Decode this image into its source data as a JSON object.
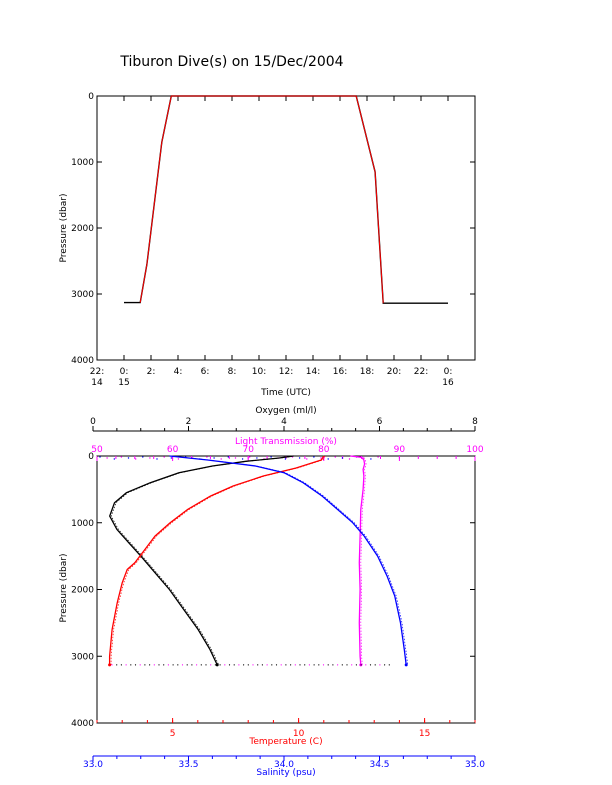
{
  "page": {
    "title": "Tiburon Dive(s) on 15/Dec/2004"
  },
  "colors": {
    "black": "#000000",
    "red": "#ff0000",
    "magenta": "#ff00ff",
    "blue": "#0000ff"
  },
  "chart_data": [
    {
      "type": "line",
      "panel": "pressure-vs-time",
      "xlabel": "Time (UTC)",
      "ylabel": "Pressure (dbar)",
      "x_unit": "hours since 22:00 UTC (ticks every 2 h)",
      "xlim": [
        0,
        28
      ],
      "ylim": [
        4000,
        0
      ],
      "x_ticks": [
        {
          "x": 0,
          "line1": "22:",
          "line2": "14"
        },
        {
          "x": 2,
          "line1": "0:",
          "line2": "15"
        },
        {
          "x": 4,
          "line1": "2:",
          "line2": ""
        },
        {
          "x": 6,
          "line1": "4:",
          "line2": ""
        },
        {
          "x": 8,
          "line1": "6:",
          "line2": ""
        },
        {
          "x": 10,
          "line1": "8:",
          "line2": ""
        },
        {
          "x": 12,
          "line1": "10:",
          "line2": ""
        },
        {
          "x": 14,
          "line1": "12:",
          "line2": ""
        },
        {
          "x": 16,
          "line1": "14:",
          "line2": ""
        },
        {
          "x": 18,
          "line1": "16:",
          "line2": ""
        },
        {
          "x": 20,
          "line1": "18:",
          "line2": ""
        },
        {
          "x": 22,
          "line1": "20:",
          "line2": ""
        },
        {
          "x": 24,
          "line1": "22:",
          "line2": ""
        },
        {
          "x": 26,
          "line1": "0:",
          "line2": "16"
        }
      ],
      "y_ticks": [
        "0",
        "1000",
        "2000",
        "3000",
        "4000"
      ],
      "y_tick_values": [
        0,
        1000,
        2000,
        3000,
        4000
      ],
      "series": [
        {
          "color": "#000000",
          "points": [
            [
              2,
              3130
            ],
            [
              3.2,
              3130
            ],
            [
              3.7,
              2550
            ],
            [
              4.8,
              700
            ],
            [
              5.5,
              0
            ],
            [
              19.2,
              0
            ],
            [
              20.6,
              1150
            ],
            [
              21.2,
              3140
            ],
            [
              26,
              3140
            ]
          ]
        },
        {
          "color": "#ff0000",
          "points": [
            [
              3.2,
              3130
            ],
            [
              3.7,
              2550
            ],
            [
              4.8,
              700
            ],
            [
              5.5,
              0
            ],
            [
              19.2,
              0
            ],
            [
              20.6,
              1150
            ],
            [
              21.2,
              3140
            ]
          ]
        }
      ]
    },
    {
      "type": "line",
      "panel": "ctd-profile",
      "ylabel": "Pressure (dbar)",
      "ylim": [
        4000,
        0
      ],
      "y_ticks": [
        "0",
        "1000",
        "2000",
        "3000",
        "4000"
      ],
      "y_tick_values": [
        0,
        1000,
        2000,
        3000,
        4000
      ],
      "axes": [
        {
          "key": "oxygen",
          "label": "Oxygen (ml/l)",
          "color": "#000000",
          "position": "top-outer",
          "range": [
            0,
            8
          ],
          "ticks": [
            "0",
            "2",
            "4",
            "6",
            "8"
          ],
          "tick_values": [
            0,
            2,
            4,
            6,
            8
          ]
        },
        {
          "key": "transmission",
          "label": "Light Transmission (%)",
          "color": "#ff00ff",
          "position": "top-inner",
          "range": [
            50,
            100
          ],
          "ticks": [
            "50",
            "60",
            "70",
            "80",
            "90",
            "100"
          ],
          "tick_values": [
            50,
            60,
            70,
            80,
            90,
            100
          ]
        },
        {
          "key": "temperature",
          "label": "Temperature (C)",
          "color": "#ff0000",
          "position": "bottom-inner",
          "range": [
            2.0,
            17.0
          ],
          "ticks": [
            "5",
            "10",
            "15"
          ],
          "tick_values": [
            5,
            10,
            15
          ]
        },
        {
          "key": "salinity",
          "label": "Salinity (psu)",
          "color": "#0000ff",
          "position": "bottom-outer",
          "range": [
            33.0,
            35.0
          ],
          "ticks": [
            "33.0",
            "33.5",
            "34.0",
            "34.5",
            "35.0"
          ],
          "tick_values": [
            33.0,
            33.5,
            34.0,
            34.5,
            35.0
          ]
        }
      ],
      "series": [
        {
          "axis": "oxygen",
          "color": "#000000",
          "pressure": [
            0,
            30,
            80,
            150,
            250,
            400,
            550,
            700,
            900,
            1100,
            1300,
            1500,
            1750,
            2000,
            2300,
            2600,
            2900,
            3130
          ],
          "values": [
            4.2,
            3.9,
            3.2,
            2.5,
            1.8,
            1.2,
            0.7,
            0.45,
            0.35,
            0.5,
            0.75,
            1.0,
            1.3,
            1.6,
            1.9,
            2.2,
            2.45,
            2.6
          ]
        },
        {
          "axis": "transmission",
          "color": "#ff00ff",
          "pressure": [
            0,
            20,
            60,
            120,
            200,
            300,
            500,
            800,
            1200,
            1600,
            2000,
            2500,
            3000,
            3130
          ],
          "values": [
            83.5,
            85.0,
            85.3,
            85.4,
            85.2,
            85.3,
            85.2,
            84.9,
            84.8,
            84.7,
            84.8,
            84.7,
            84.8,
            84.9
          ]
        },
        {
          "axis": "temperature",
          "color": "#ff0000",
          "pressure": [
            0,
            60,
            180,
            300,
            450,
            600,
            800,
            1000,
            1200,
            1400,
            1600,
            1700,
            1900,
            2200,
            2600,
            3000,
            3130
          ],
          "values": [
            11.0,
            10.9,
            9.9,
            8.6,
            7.4,
            6.5,
            5.6,
            4.9,
            4.3,
            3.9,
            3.5,
            3.2,
            3.0,
            2.8,
            2.6,
            2.5,
            2.5
          ]
        },
        {
          "axis": "salinity",
          "color": "#0000ff",
          "pressure": [
            0,
            60,
            150,
            250,
            400,
            600,
            800,
            1000,
            1200,
            1500,
            1800,
            2100,
            2500,
            2900,
            3130
          ],
          "values": [
            33.4,
            33.6,
            33.85,
            34.0,
            34.1,
            34.2,
            34.28,
            34.36,
            34.42,
            34.49,
            34.54,
            34.58,
            34.61,
            34.63,
            34.64
          ]
        }
      ]
    }
  ]
}
